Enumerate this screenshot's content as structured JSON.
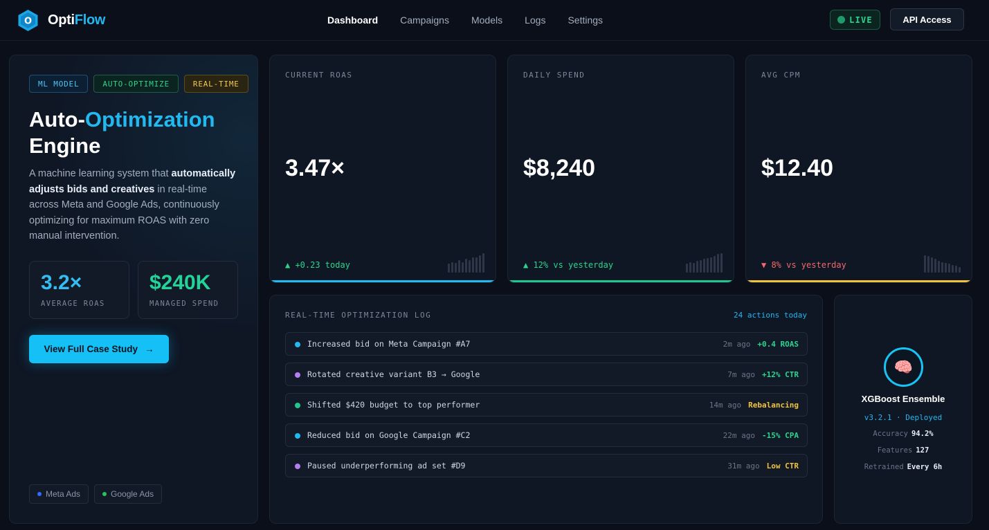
{
  "header": {
    "brand_prefix": "Opti",
    "brand_suffix": "Flow",
    "logo_letter": "O",
    "nav": [
      "Dashboard",
      "Campaigns",
      "Models",
      "Logs",
      "Settings"
    ],
    "live_label": "LIVE",
    "api_button": "API Access"
  },
  "hero": {
    "tags": [
      "ML MODEL",
      "AUTO-OPTIMIZE",
      "REAL-TIME"
    ],
    "title_prefix": "Auto-",
    "title_highlight": "Optimization",
    "title_line2": "Engine",
    "desc_1": "A machine learning system that ",
    "desc_bold": "automatically adjusts bids and creatives",
    "desc_2": " in real-time across Meta and Google Ads, continuously optimizing for maximum ROAS with zero manual intervention.",
    "stats": [
      {
        "value": "3.2×",
        "label": "AVERAGE ROAS",
        "color": "#34bdf2"
      },
      {
        "value": "$240K",
        "label": "MANAGED SPEND",
        "color": "#22d39a"
      }
    ],
    "cta_label": "View Full Case Study",
    "cta_arrow": "→",
    "platforms": [
      {
        "label": "Meta Ads",
        "color": "#2f6bff"
      },
      {
        "label": "Google Ads",
        "color": "#22c55e"
      }
    ]
  },
  "metrics": [
    {
      "label": "CURRENT ROAS",
      "value": "3.47×",
      "delta": "▲ +0.23 today",
      "delta_color": "#2bd58e",
      "accent": "#22b8f0",
      "bars": [
        0.45,
        0.55,
        0.5,
        0.65,
        0.55,
        0.7,
        0.65,
        0.8,
        0.8,
        0.9,
        1.0
      ]
    },
    {
      "label": "DAILY SPEND",
      "value": "$8,240",
      "delta": "▲ 12% vs yesterday",
      "delta_color": "#2bd58e",
      "accent": "#22c58e",
      "bars": [
        0.45,
        0.55,
        0.5,
        0.6,
        0.65,
        0.7,
        0.75,
        0.8,
        0.85,
        0.95,
        1.0
      ]
    },
    {
      "label": "AVG CPM",
      "value": "$12.40",
      "delta": "▼ 8% vs yesterday",
      "delta_color": "#f26a6a",
      "accent": "#f2c23a",
      "bars": [
        0.9,
        0.85,
        0.8,
        0.7,
        0.6,
        0.55,
        0.5,
        0.45,
        0.4,
        0.35,
        0.3
      ]
    }
  ],
  "log": {
    "title": "REAL-TIME OPTIMIZATION LOG",
    "count": "24 actions today",
    "rows": [
      {
        "text": "Increased bid on Meta Campaign #A7",
        "time": "2m ago",
        "result": "+0.4 ROAS",
        "dot": "#22b8f0",
        "result_color": "#2bd58e"
      },
      {
        "text": "Rotated creative variant B3 → Google",
        "time": "7m ago",
        "result": "+12% CTR",
        "dot": "#b77cf0",
        "result_color": "#2bd58e"
      },
      {
        "text": "Shifted $420 budget to top performer",
        "time": "14m ago",
        "result": "Rebalancing",
        "dot": "#22c58e",
        "result_color": "#f2c23a"
      },
      {
        "text": "Reduced bid on Google Campaign #C2",
        "time": "22m ago",
        "result": "-15% CPA",
        "dot": "#22b8f0",
        "result_color": "#2bd58e"
      },
      {
        "text": "Paused underperforming ad set #D9",
        "time": "31m ago",
        "result": "Low CTR",
        "dot": "#b77cf0",
        "result_color": "#f2c23a"
      }
    ]
  },
  "model": {
    "icon": "🧠",
    "name": "XGBoost Ensemble",
    "version": "v3.2.1 · Deployed",
    "stats": [
      {
        "key": "Accuracy",
        "value": "94.2%"
      },
      {
        "key": "Features",
        "value": "127"
      },
      {
        "key": "Retrained",
        "value": "Every 6h"
      }
    ]
  }
}
